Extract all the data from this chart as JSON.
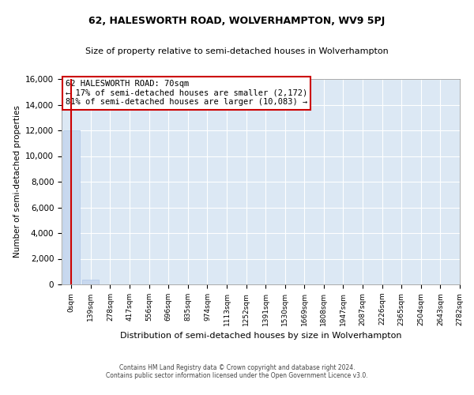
{
  "title": "62, HALESWORTH ROAD, WOLVERHAMPTON, WV9 5PJ",
  "subtitle": "Size of property relative to semi-detached houses in Wolverhampton",
  "xlabel": "Distribution of semi-detached houses by size in Wolverhampton",
  "ylabel": "Number of semi-detached properties",
  "bar_values": [
    12000,
    400,
    0,
    0,
    0,
    0,
    0,
    0,
    0,
    0,
    0,
    0,
    0,
    0,
    0,
    0,
    0,
    0,
    0,
    0
  ],
  "bar_color": "#c8d8ee",
  "bar_edge_color": "#b0c8e8",
  "x_labels": [
    "0sqm",
    "139sqm",
    "278sqm",
    "417sqm",
    "556sqm",
    "696sqm",
    "835sqm",
    "974sqm",
    "1113sqm",
    "1252sqm",
    "1391sqm",
    "1530sqm",
    "1669sqm",
    "1808sqm",
    "1947sqm",
    "2087sqm",
    "2226sqm",
    "2365sqm",
    "2504sqm",
    "2643sqm",
    "2782sqm"
  ],
  "ylim": [
    0,
    16000
  ],
  "yticks": [
    0,
    2000,
    4000,
    6000,
    8000,
    10000,
    12000,
    14000,
    16000
  ],
  "annotation_title": "62 HALESWORTH ROAD: 70sqm",
  "annotation_line1": "← 17% of semi-detached houses are smaller (2,172)",
  "annotation_line2": "81% of semi-detached houses are larger (10,083) →",
  "annotation_color": "#cc0000",
  "background_color": "#dce8f4",
  "grid_color": "#ffffff",
  "footer_line1": "Contains HM Land Registry data © Crown copyright and database right 2024.",
  "footer_line2": "Contains public sector information licensed under the Open Government Licence v3.0."
}
